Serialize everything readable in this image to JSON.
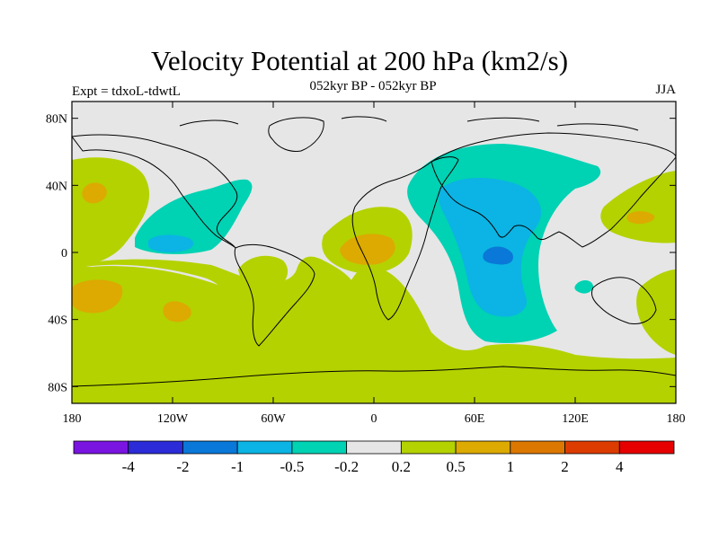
{
  "title": "Velocity Potential at 200 hPa (km2/s)",
  "subtitle": "052kyr BP - 052kyr BP",
  "expt": "Expt = tdxoL-tdwtL",
  "season": "JJA",
  "map": {
    "projection": "cylindrical equidistant",
    "lon_range": [
      -180,
      180
    ],
    "lat_range": [
      -90,
      90
    ],
    "lat_ticks": [
      {
        "lat": 80,
        "label": "80N"
      },
      {
        "lat": 40,
        "label": "40N"
      },
      {
        "lat": 0,
        "label": "0"
      },
      {
        "lat": -40,
        "label": "40S"
      },
      {
        "lat": -80,
        "label": "80S"
      }
    ],
    "lon_ticks": [
      {
        "lon": -180,
        "label": "180"
      },
      {
        "lon": -120,
        "label": "120W"
      },
      {
        "lon": -60,
        "label": "60W"
      },
      {
        "lon": 0,
        "label": "0"
      },
      {
        "lon": 60,
        "label": "60E"
      },
      {
        "lon": 120,
        "label": "120E"
      },
      {
        "lon": 180,
        "label": "180"
      }
    ],
    "background_color": "#e6e6e6",
    "coastline_color": "#000000"
  },
  "colorbar": {
    "colors": [
      "#7a14e0",
      "#2b2bd8",
      "#0a78d8",
      "#0bb4e4",
      "#00d2b4",
      "#e6e6e6",
      "#b4d200",
      "#dcaa00",
      "#dc7800",
      "#dc3c00",
      "#e60000"
    ],
    "labels": [
      "-4",
      "-2",
      "-1",
      "-0.5",
      "-0.2",
      "0.2",
      "0.5",
      "1",
      "2",
      "4"
    ]
  }
}
